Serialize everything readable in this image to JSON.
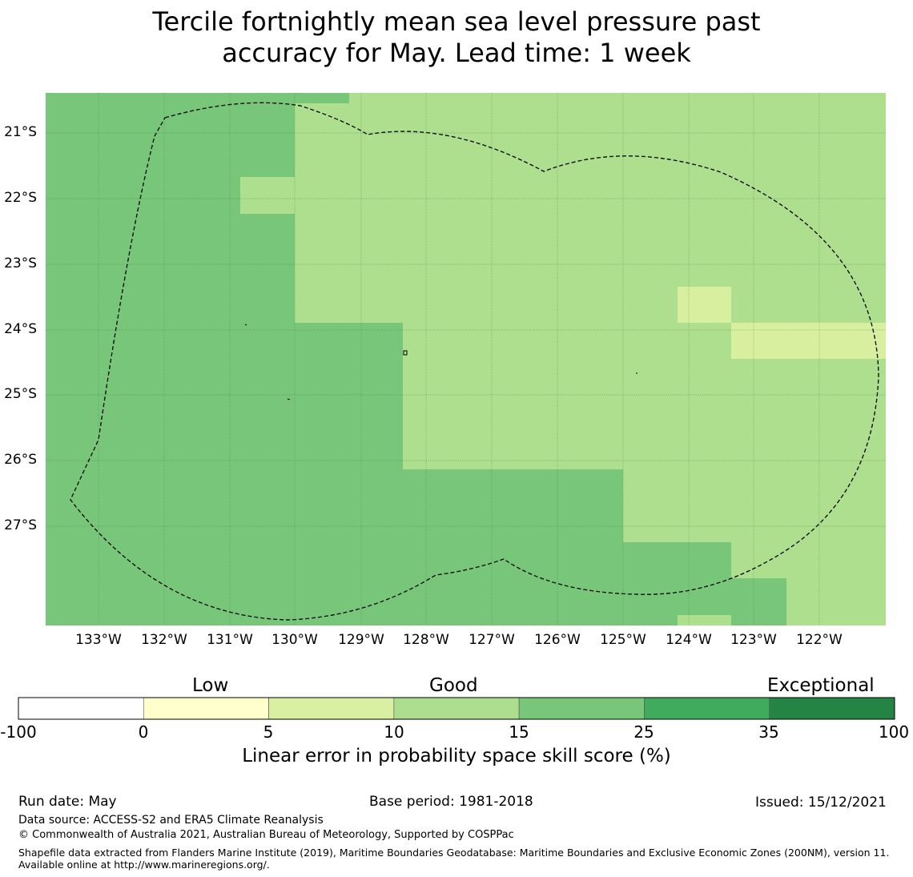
{
  "title_line1": "Tercile fortnightly mean sea level pressure past",
  "title_line2": "accuracy for May. Lead time: 1 week",
  "map": {
    "lat_labels": [
      "21°S",
      "22°S",
      "23°S",
      "24°S",
      "25°S",
      "26°S",
      "27°S"
    ],
    "lon_labels": [
      "133°W",
      "132°W",
      "131°W",
      "130°W",
      "129°W",
      "128°W",
      "127°W",
      "126°W",
      "125°W",
      "124°W",
      "123°W",
      "122°W"
    ],
    "boundary": "dashed EEZ outline",
    "colors": {
      "skill_5_10": "#d9efa0",
      "skill_10_15": "#addf8e",
      "skill_15_25": "#78c679"
    }
  },
  "colorbar": {
    "categories": [
      "Low",
      "Good",
      "Exceptional"
    ],
    "ticks": [
      "-100",
      "0",
      "5",
      "10",
      "15",
      "25",
      "35",
      "100"
    ],
    "colors": [
      "#ffffff",
      "#ffffcc",
      "#d9f0a3",
      "#addd8e",
      "#78c679",
      "#41ab5d",
      "#238443"
    ],
    "label": "Linear error in probability space skill score (%)"
  },
  "footer": {
    "run_date": "Run date: May",
    "base_period": "Base period: 1981-2018",
    "issued": "Issued: 15/12/2021",
    "data_source": "Data source: ACCESS-S2 and ERA5 Climate Reanalysis",
    "copyright": "© Commonwealth of Australia 2021, Australian Bureau of Meteorology, Supported by COSPPac",
    "shapefile_note": "Shapefile data extracted from Flanders Marine Institute (2019), Maritime Boundaries Geodatabase: Maritime Boundaries and Exclusive Economic Zones (200NM), version 11. Available online at http://www.marineregions.org/."
  }
}
